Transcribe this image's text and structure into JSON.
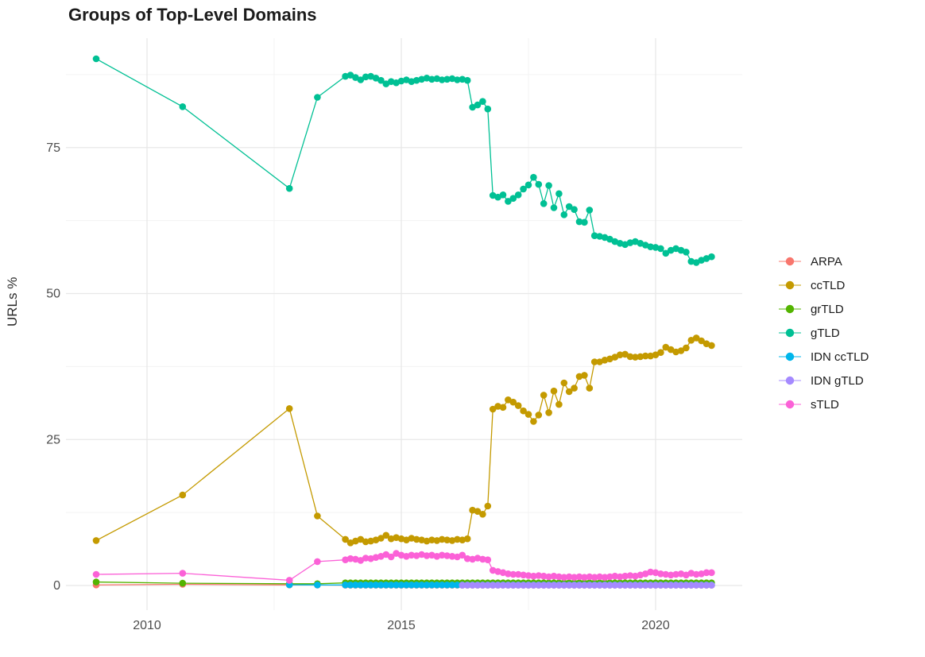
{
  "page": {
    "title": "Groups of Top-Level Domains"
  },
  "axes": {
    "y_title": "URLs %",
    "x_tick_labels": [
      "2010",
      "2015",
      "2020"
    ],
    "y_tick_labels": [
      "0",
      "25",
      "50",
      "75"
    ]
  },
  "legend": {
    "items": [
      "ARPA",
      "ccTLD",
      "grTLD",
      "gTLD",
      "IDN ccTLD",
      "IDN gTLD",
      "sTLD"
    ]
  },
  "chart_data": {
    "type": "line",
    "title": "Groups of Top-Level Domains",
    "xlabel": "",
    "ylabel": "URLs %",
    "x_ticks": [
      2010,
      2015,
      2020
    ],
    "y_ticks": [
      0,
      25,
      50,
      75
    ],
    "xlim": [
      2008.4,
      2021.7
    ],
    "ylim": [
      -4.5,
      94
    ],
    "grid": true,
    "legend_position": "right",
    "marker": "circle",
    "series": [
      {
        "name": "ARPA",
        "color": "#F8766D",
        "sparse": [
          [
            2009,
            0.1
          ],
          [
            2010.7,
            0.2
          ],
          [
            2012.8,
            0.1
          ],
          [
            2013.35,
            0.08
          ]
        ],
        "dense": {
          "x0": 2013.9,
          "dx": 0.1,
          "n": 73,
          "const": 0.05
        }
      },
      {
        "name": "ccTLD",
        "color": "#C49A00",
        "sparse": [
          [
            2009,
            7.7
          ],
          [
            2010.7,
            15.5
          ],
          [
            2012.8,
            30.3
          ],
          [
            2013.35,
            11.9
          ]
        ],
        "dense": {
          "x0": 2013.9,
          "dx": 0.1,
          "values": [
            7.9,
            7.3,
            7.6,
            7.9,
            7.5,
            7.6,
            7.8,
            8.1,
            8.6,
            8.0,
            8.2,
            8.0,
            7.8,
            8.1,
            7.9,
            7.8,
            7.6,
            7.8,
            7.7,
            7.9,
            7.8,
            7.7,
            7.9,
            7.8,
            8.0,
            12.9,
            12.7,
            12.2,
            13.6,
            30.2,
            30.7,
            30.5,
            31.8,
            31.4,
            30.8,
            29.9,
            29.3,
            28.1,
            29.2,
            32.6,
            29.6,
            33.3,
            31.0,
            34.7,
            33.2,
            33.8,
            35.8,
            36.0,
            33.8,
            38.3,
            38.3,
            38.6,
            38.8,
            39.1,
            39.5,
            39.6,
            39.2,
            39.1,
            39.2,
            39.3,
            39.3,
            39.5,
            39.9,
            40.8,
            40.4,
            40.0,
            40.2,
            40.7,
            42.0,
            42.4,
            41.9,
            41.4,
            41.1
          ]
        }
      },
      {
        "name": "grTLD",
        "color": "#53B400",
        "sparse": [
          [
            2009,
            0.6
          ],
          [
            2010.7,
            0.4
          ],
          [
            2012.8,
            0.3
          ],
          [
            2013.35,
            0.3
          ]
        ],
        "dense": {
          "x0": 2013.9,
          "dx": 0.1,
          "n": 73,
          "const": 0.45
        }
      },
      {
        "name": "gTLD",
        "color": "#00C094",
        "sparse": [
          [
            2009,
            90.2
          ],
          [
            2010.7,
            82.0
          ],
          [
            2012.8,
            68.0
          ],
          [
            2013.35,
            83.6
          ]
        ],
        "dense": {
          "x0": 2013.9,
          "dx": 0.1,
          "values": [
            87.2,
            87.4,
            87.0,
            86.6,
            87.1,
            87.2,
            86.9,
            86.5,
            85.9,
            86.3,
            86.1,
            86.4,
            86.6,
            86.3,
            86.5,
            86.7,
            86.9,
            86.7,
            86.8,
            86.6,
            86.7,
            86.8,
            86.6,
            86.7,
            86.5,
            81.9,
            82.3,
            82.9,
            81.6,
            66.8,
            66.5,
            66.9,
            65.8,
            66.3,
            66.9,
            67.9,
            68.6,
            69.9,
            68.7,
            65.4,
            68.5,
            64.7,
            67.1,
            63.5,
            64.9,
            64.4,
            62.3,
            62.2,
            64.3,
            59.9,
            59.8,
            59.6,
            59.3,
            58.9,
            58.6,
            58.4,
            58.7,
            58.9,
            58.6,
            58.3,
            58.0,
            57.9,
            57.7,
            56.9,
            57.4,
            57.7,
            57.4,
            57.1,
            55.5,
            55.3,
            55.7,
            56.0,
            56.3
          ]
        }
      },
      {
        "name": "IDN ccTLD",
        "color": "#00B6EB",
        "sparse": [
          [
            2012.8,
            0.12
          ],
          [
            2013.35,
            0.1
          ]
        ],
        "dense": {
          "x0": 2013.9,
          "dx": 0.1,
          "n": 73,
          "const": 0.1
        }
      },
      {
        "name": "IDN gTLD",
        "color": "#A58AFF",
        "sparse": [],
        "dense": {
          "x0": 2016.2,
          "dx": 0.1,
          "n": 50,
          "const": 0.05
        }
      },
      {
        "name": "sTLD",
        "color": "#FB61D7",
        "sparse": [
          [
            2009,
            1.9
          ],
          [
            2010.7,
            2.1
          ],
          [
            2012.8,
            0.9
          ],
          [
            2013.35,
            4.1
          ]
        ],
        "dense": {
          "x0": 2013.9,
          "dx": 0.1,
          "values": [
            4.4,
            4.6,
            4.5,
            4.3,
            4.7,
            4.6,
            4.8,
            5.0,
            5.3,
            4.9,
            5.5,
            5.2,
            5.0,
            5.2,
            5.1,
            5.3,
            5.1,
            5.2,
            5.0,
            5.2,
            5.1,
            5.0,
            4.9,
            5.2,
            4.6,
            4.5,
            4.7,
            4.5,
            4.4,
            2.6,
            2.4,
            2.2,
            2.0,
            1.9,
            1.9,
            1.8,
            1.7,
            1.6,
            1.7,
            1.6,
            1.5,
            1.6,
            1.5,
            1.4,
            1.5,
            1.4,
            1.5,
            1.4,
            1.5,
            1.4,
            1.5,
            1.4,
            1.5,
            1.6,
            1.5,
            1.6,
            1.7,
            1.6,
            1.8,
            2.0,
            2.3,
            2.2,
            2.0,
            1.9,
            1.8,
            1.9,
            2.0,
            1.8,
            2.1,
            1.9,
            2.0,
            2.2,
            2.2
          ]
        }
      }
    ],
    "style_colors": {
      "grid_major": "#e8e8e8",
      "grid_minor": "#f3f3f3",
      "tick_text": "#4d4d4d"
    }
  }
}
